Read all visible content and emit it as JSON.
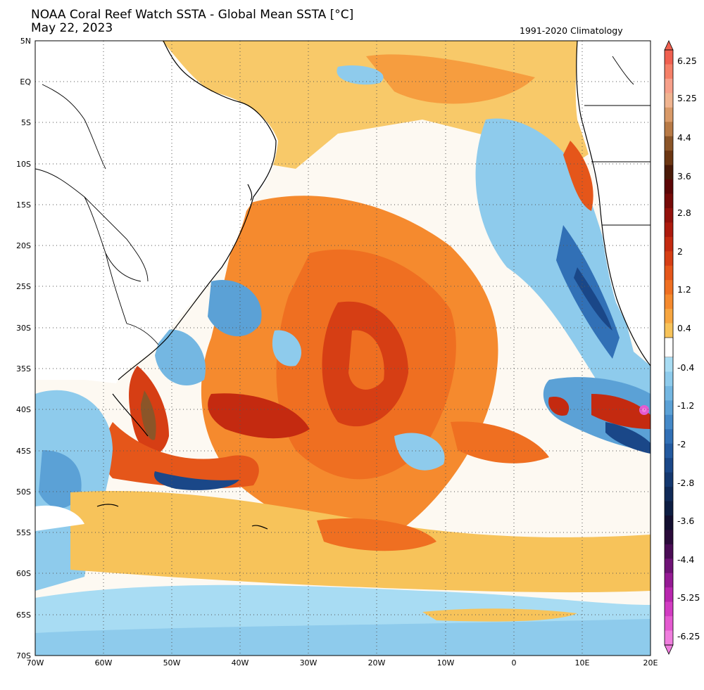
{
  "title": {
    "line1": "NOAA Coral Reef Watch SSTA - Global Mean SSTA [°C]",
    "line2": "May 22, 2023",
    "climatology": "1991-2020 Climatology"
  },
  "map": {
    "region": "South Atlantic",
    "lat_labels": [
      "5N",
      "EQ",
      "5S",
      "10S",
      "15S",
      "20S",
      "25S",
      "30S",
      "35S",
      "40S",
      "45S",
      "50S",
      "55S",
      "60S",
      "65S",
      "70S"
    ],
    "lon_labels": [
      "70W",
      "60W",
      "50W",
      "40W",
      "30W",
      "20W",
      "10W",
      "0",
      "10E",
      "20E"
    ],
    "gridlines": "dotted"
  },
  "colorbar": {
    "labels": [
      "6.25",
      "5.25",
      "4.4",
      "3.6",
      "2.8",
      "2",
      "1.2",
      "0.4",
      "-0.4",
      "-1.2",
      "-2",
      "-2.8",
      "-3.6",
      "-4.4",
      "-5.25",
      "-6.25"
    ],
    "warm_colors": [
      "#f7c35a",
      "#f7a640",
      "#f58a2e",
      "#ef6f21",
      "#e5561a",
      "#d63e14",
      "#c42a10",
      "#ad1a0d",
      "#93100b",
      "#760a08",
      "#5c0606",
      "#4a1a08",
      "#6b3612",
      "#8b5528",
      "#b87a46",
      "#d99a68",
      "#f0b490",
      "#f7a08a",
      "#f58068",
      "#f06050"
    ],
    "cool_colors": [
      "#a8dcf3",
      "#8ecbec",
      "#74b7e2",
      "#5ba1d6",
      "#4489c8",
      "#3170b6",
      "#235aa0",
      "#1a4788",
      "#14386f",
      "#102a58",
      "#0d1d42",
      "#130f30",
      "#2a0b3a",
      "#4a0c55",
      "#6e1275",
      "#951a94",
      "#b826ae",
      "#d23cc2",
      "#e45ad0",
      "#f07ede"
    ]
  }
}
